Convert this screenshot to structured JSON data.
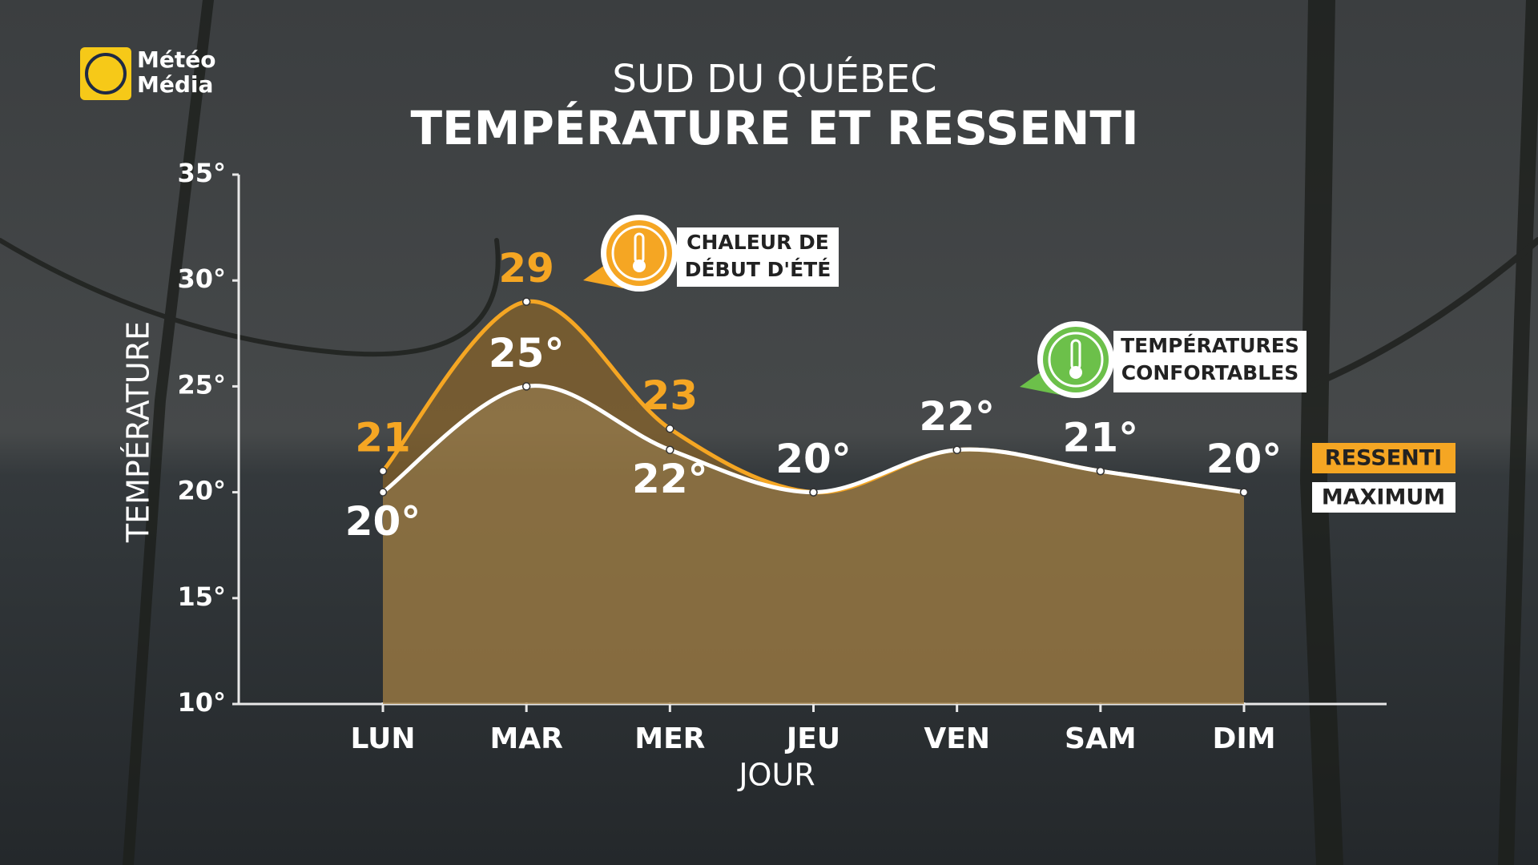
{
  "branding": {
    "logo_lines": [
      "Météo",
      "Média"
    ]
  },
  "chart_data": {
    "type": "line",
    "title": "SUD DU QUÉBEC",
    "subtitle": "TEMPÉRATURE ET RESSENTI",
    "x_label": "JOUR",
    "y_label": "TEMPÉRATURE",
    "categories": [
      "LUN",
      "MAR",
      "MER",
      "JEU",
      "VEN",
      "SAM",
      "DIM"
    ],
    "series": [
      {
        "name": "RESSENTI",
        "color": "#f5a623",
        "values": [
          21,
          29,
          23,
          20,
          22,
          21,
          20
        ],
        "value_labels": [
          "21",
          "29",
          "23",
          null,
          null,
          null,
          null
        ]
      },
      {
        "name": "MAXIMUM",
        "color": "#ffffff",
        "values": [
          20,
          25,
          22,
          20,
          22,
          21,
          20
        ],
        "value_labels": [
          "20°",
          "25°",
          "22°",
          "20°",
          "22°",
          "21°",
          "20°"
        ]
      }
    ],
    "ylim": [
      10,
      35
    ],
    "yticks": [
      {
        "value": 10,
        "label": "10°"
      },
      {
        "value": 15,
        "label": "15°"
      },
      {
        "value": 20,
        "label": "20°"
      },
      {
        "value": 25,
        "label": "25°"
      },
      {
        "value": 30,
        "label": "30°"
      },
      {
        "value": 35,
        "label": "35°"
      }
    ],
    "grid": false,
    "legend": "right",
    "annotations": [
      {
        "lines": [
          "CHALEUR DE",
          "DÉBUT D'ÉTÉ"
        ],
        "color": "#f5a623"
      },
      {
        "lines": [
          "TEMPÉRATURES",
          "CONFORTABLES"
        ],
        "color": "#6cc04a"
      }
    ]
  }
}
